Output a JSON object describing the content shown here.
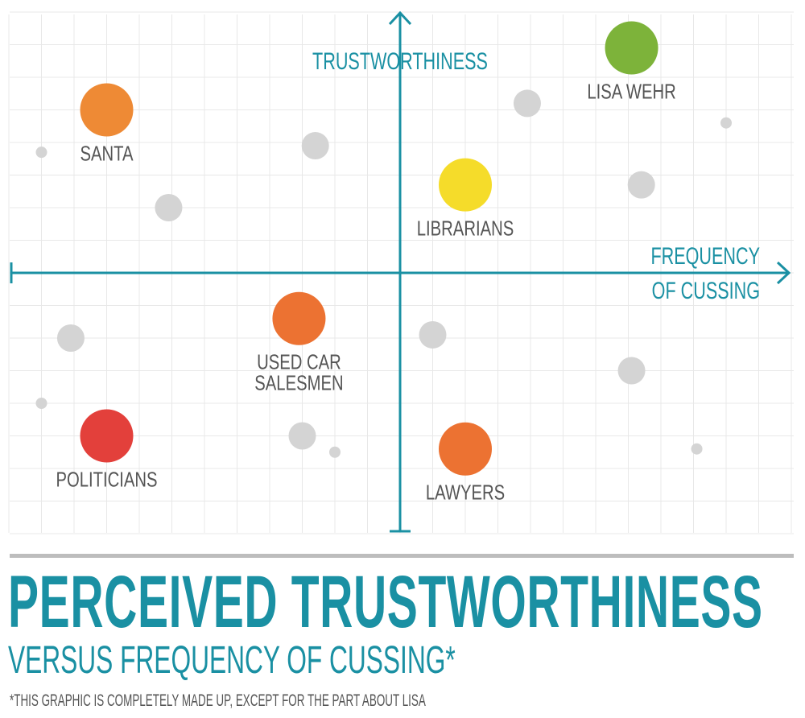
{
  "chart_data": {
    "type": "scatter",
    "title": "PERCEIVED TRUSTWORTHINESS",
    "subtitle": "VERSUS FREQUENCY OF CUSSING*",
    "footnote": "*THIS GRAPHIC IS COMPLETELY MADE UP, EXCEPT FOR THE PART ABOUT LISA",
    "xlabel": [
      "FREQUENCY",
      "OF CUSSING"
    ],
    "ylabel": "TRUSTWORTHINESS",
    "xlim": [
      -12,
      12
    ],
    "ylim": [
      -8,
      8
    ],
    "grid": true,
    "points": [
      {
        "label": "LISA WEHR",
        "x": 7.1,
        "y": 6.9,
        "color": "#7db33a",
        "size": "large"
      },
      {
        "label": "SANTA",
        "x": -9.0,
        "y": 5.0,
        "color": "#ee8a35",
        "size": "large"
      },
      {
        "label": "LIBRARIANS",
        "x": 2.0,
        "y": 2.7,
        "color": "#f5dc2a",
        "size": "large"
      },
      {
        "label": [
          "USED CAR",
          "SALESMEN"
        ],
        "x": -3.1,
        "y": -1.4,
        "color": "#ec7232",
        "size": "large"
      },
      {
        "label": "POLITICIANS",
        "x": -9.0,
        "y": -5.0,
        "color": "#e3403b",
        "size": "large"
      },
      {
        "label": "LAWYERS",
        "x": 2.0,
        "y": -5.4,
        "color": "#ec7232",
        "size": "large"
      }
    ],
    "unlabeled_points": [
      {
        "x": 3.9,
        "y": 5.2,
        "size": "medium"
      },
      {
        "x": 10.0,
        "y": 4.6,
        "size": "small"
      },
      {
        "x": -2.6,
        "y": 3.9,
        "size": "medium"
      },
      {
        "x": 7.4,
        "y": 2.7,
        "size": "medium"
      },
      {
        "x": -11.0,
        "y": 3.7,
        "size": "small"
      },
      {
        "x": -7.1,
        "y": 2.0,
        "size": "medium"
      },
      {
        "x": -10.1,
        "y": -2.0,
        "size": "medium"
      },
      {
        "x": 1.0,
        "y": -1.9,
        "size": "medium"
      },
      {
        "x": 7.1,
        "y": -3.0,
        "size": "medium"
      },
      {
        "x": -11.0,
        "y": -4.0,
        "size": "small"
      },
      {
        "x": -3.0,
        "y": -5.0,
        "size": "medium"
      },
      {
        "x": -2.0,
        "y": -5.5,
        "size": "small"
      },
      {
        "x": 9.1,
        "y": -5.4,
        "size": "small"
      }
    ],
    "colors": {
      "axis": "#1a90a3",
      "grid": "#e8e8e8",
      "unlabeled_point": "#d4d4d4",
      "label": "#555555"
    }
  }
}
